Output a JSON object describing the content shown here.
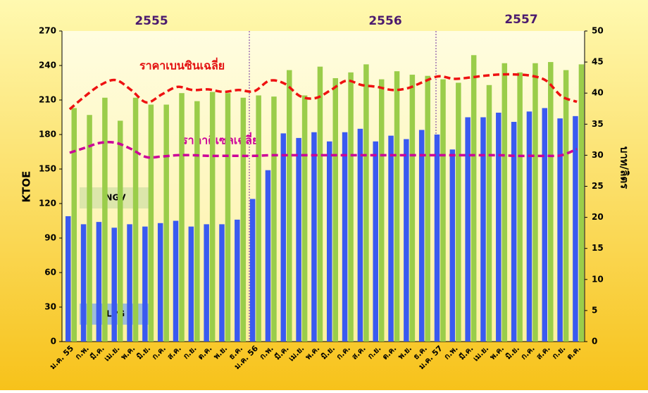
{
  "chart_data": {
    "type": "bar-line",
    "periods": [
      "2555",
      "2556",
      "2557"
    ],
    "ylabel": "KTOE",
    "y2label": "บาท/ลิตร",
    "categories": [
      "ม.ค. 55",
      "ก.พ.",
      "มี.ค.",
      "เม.ย.",
      "พ.ค.",
      "มิ.ย.",
      "ก.ค.",
      "ส.ค.",
      "ก.ย.",
      "ต.ค.",
      "พ.ย.",
      "ธ.ค.",
      "ม.ค. 56",
      "ก.พ.",
      "มี.ค.",
      "เม.ย.",
      "พ.ค.",
      "มิ.ย.",
      "ก.ค.",
      "ส.ค.",
      "ก.ย.",
      "ต.ค.",
      "พ.ย.",
      "ธ.ค.",
      "ม.ค. 57",
      "ก.พ.",
      "มี.ค.",
      "เม.ย.",
      "พ.ค.",
      "มิ.ย.",
      "ก.ค.",
      "ส.ค.",
      "ก.ย.",
      "ต.ค."
    ],
    "series": [
      {
        "name": "LPG",
        "type": "bar",
        "color": "#3a5af0",
        "values": [
          109,
          102,
          104,
          99,
          102,
          100,
          103,
          105,
          100,
          102,
          102,
          106,
          124,
          149,
          181,
          177,
          182,
          174,
          182,
          185,
          174,
          179,
          176,
          184,
          180,
          167,
          195,
          195,
          199,
          191,
          200,
          203,
          194,
          196
        ]
      },
      {
        "name": "NGV",
        "type": "bar",
        "color": "#9acd4a",
        "values": [
          203,
          197,
          212,
          192,
          212,
          206,
          206,
          216,
          209,
          217,
          216,
          212,
          214,
          213,
          236,
          214,
          239,
          229,
          234,
          241,
          228,
          235,
          232,
          231,
          228,
          225,
          249,
          223,
          242,
          234,
          242,
          243,
          236,
          241
        ]
      },
      {
        "name": "ราคาเบนซินเฉลี่ย",
        "type": "line",
        "axis": "y2",
        "color": "#ee1111",
        "values": [
          37.4,
          39.5,
          41.3,
          42.1,
          40.5,
          38.5,
          39.8,
          41,
          40.5,
          40.6,
          40.2,
          40.5,
          40.3,
          42,
          41.5,
          39.5,
          39.2,
          40.5,
          42,
          41.3,
          41,
          40.5,
          40.8,
          41.8,
          42.7,
          42.3,
          42.5,
          42.8,
          43,
          43,
          42.8,
          42,
          39.5,
          38.6
        ]
      },
      {
        "name": "ราคาดีเซลเฉลี่ย",
        "type": "line",
        "axis": "y2",
        "color": "#cc0099",
        "values": [
          30.4,
          31.2,
          32,
          32,
          31,
          29.7,
          29.8,
          30,
          30,
          29.9,
          29.9,
          29.9,
          29.9,
          30,
          30,
          30,
          30,
          30,
          30,
          30,
          30,
          30,
          30,
          30,
          30,
          30,
          30,
          30,
          30,
          29.9,
          29.9,
          29.9,
          30,
          31
        ]
      }
    ],
    "ylim": [
      0,
      270
    ],
    "yticks": [
      0,
      30,
      60,
      90,
      120,
      150,
      180,
      210,
      240,
      270
    ],
    "y2lim": [
      0,
      50
    ],
    "y2ticks": [
      0,
      5,
      10,
      15,
      20,
      25,
      30,
      35,
      40,
      45,
      50
    ]
  }
}
